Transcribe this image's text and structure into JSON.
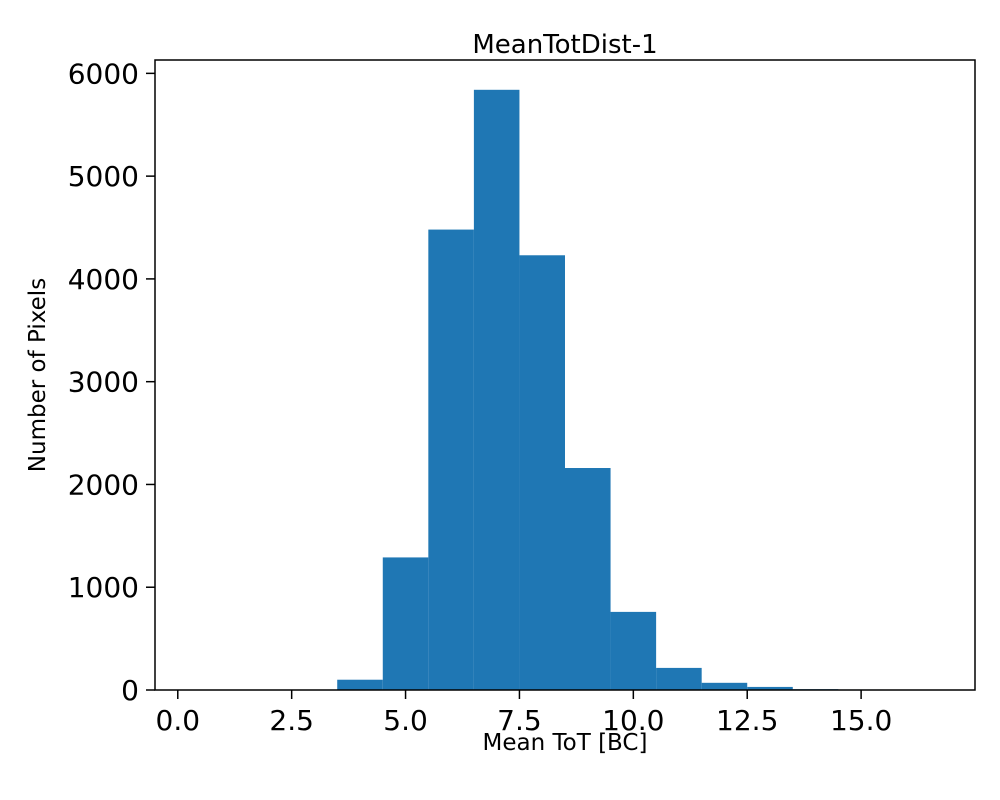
{
  "chart_data": {
    "type": "bar",
    "subtype": "histogram",
    "title": "MeanTotDist-1",
    "xlabel": "Mean ToT [BC]",
    "ylabel": "Number of Pixels",
    "bin_edges": [
      3.5,
      4.5,
      5.5,
      6.5,
      7.5,
      8.5,
      9.5,
      10.5,
      11.5,
      12.5,
      13.5,
      14.5,
      15.5
    ],
    "counts": [
      100,
      1290,
      4480,
      5840,
      4230,
      2160,
      760,
      215,
      70,
      30,
      8,
      5
    ],
    "xlim": [
      -0.5,
      17.5
    ],
    "ylim": [
      0,
      6130
    ],
    "xticks": [
      0,
      2.5,
      5,
      7.5,
      10,
      12.5,
      15
    ],
    "xtick_labels": [
      "0.0",
      "2.5",
      "5.0",
      "7.5",
      "10.0",
      "12.5",
      "15.0"
    ],
    "yticks": [
      0,
      1000,
      2000,
      3000,
      4000,
      5000,
      6000
    ],
    "ytick_labels": [
      "0",
      "1000",
      "2000",
      "3000",
      "4000",
      "5000",
      "6000"
    ],
    "bar_color": "#1f77b4",
    "axis_color": "#000000",
    "grid": false,
    "legend": null
  }
}
